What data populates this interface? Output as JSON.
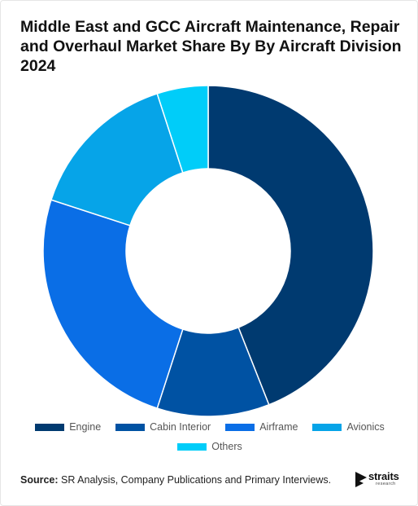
{
  "title": "Middle East and GCC Aircraft Maintenance, Repair and Overhaul Market Share By By Aircraft Division 2024",
  "chart_data": {
    "type": "pie",
    "donut": true,
    "categories": [
      "Engine",
      "Cabin Interior",
      "Airframe",
      "Avionics",
      "Others"
    ],
    "values": [
      44,
      11,
      25,
      15,
      5
    ],
    "unit": "%",
    "colors": [
      "#003a70",
      "#0052a3",
      "#0a6ee6",
      "#06a4e8",
      "#00cdf9"
    ],
    "legend_position": "bottom"
  },
  "footer": {
    "source_label": "Source:",
    "source_text": " SR Analysis, Company Publications and Primary Interviews."
  },
  "logo": {
    "word": "straits",
    "sub": "research"
  }
}
